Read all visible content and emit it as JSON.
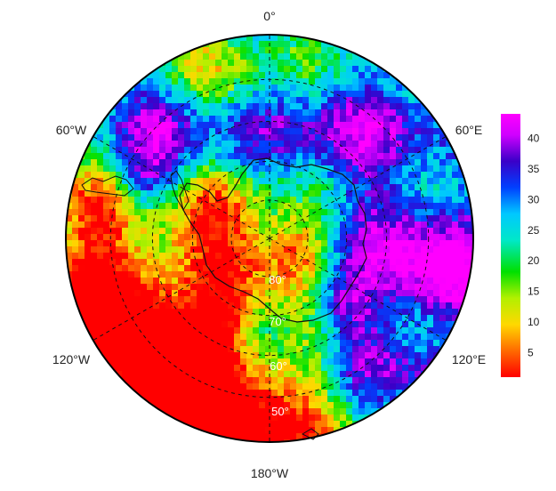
{
  "map": {
    "projection": "south polar stereographic",
    "longitude_labels": {
      "top": "0°",
      "upper_left": "60°W",
      "upper_right": "60°E",
      "lower_left": "120°W",
      "lower_right": "120°E",
      "bottom": "180°W"
    },
    "latitude_labels": [
      "80°",
      "70°",
      "60°",
      "50°"
    ],
    "latitude_circles": [
      80,
      70,
      60,
      50
    ],
    "gridline_style": "dashed",
    "colorscale": {
      "min": 1,
      "max": 44,
      "ticks": [
        "5",
        "10",
        "15",
        "20",
        "25",
        "30",
        "35",
        "40"
      ],
      "tick_values": [
        5,
        10,
        15,
        20,
        25,
        30,
        35,
        40
      ],
      "stops": [
        "#ff0000",
        "#ff6a00",
        "#ffd800",
        "#b2f000",
        "#00e000",
        "#00e8c8",
        "#00c8ff",
        "#0040ff",
        "#3a00c8",
        "#d000ff",
        "#ff00ff"
      ]
    }
  }
}
